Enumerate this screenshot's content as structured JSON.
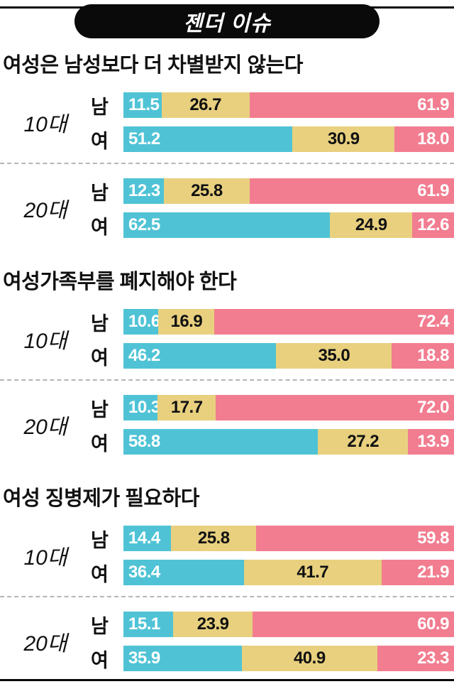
{
  "chart_data": {
    "type": "bar",
    "stacked": true,
    "orientation": "horizontal",
    "unit": "%",
    "title": "젠더 이슈",
    "segment_colors": [
      "#4fc3d5",
      "#e8d07f",
      "#f27d90"
    ],
    "axis_range": [
      0,
      100
    ],
    "grid": false,
    "legend": "none",
    "sections": [
      {
        "title": "여성은 남성보다 더 차별받지 않는다",
        "groups": [
          {
            "age": "10대",
            "rows": [
              {
                "label": "남",
                "values": [
                  11.5,
                  26.7,
                  61.9
                ]
              },
              {
                "label": "여",
                "values": [
                  51.2,
                  30.9,
                  18.0
                ]
              }
            ]
          },
          {
            "age": "20대",
            "rows": [
              {
                "label": "남",
                "values": [
                  12.3,
                  25.8,
                  61.9
                ]
              },
              {
                "label": "여",
                "values": [
                  62.5,
                  24.9,
                  12.6
                ]
              }
            ]
          }
        ]
      },
      {
        "title": "여성가족부를 폐지해야 한다",
        "groups": [
          {
            "age": "10대",
            "rows": [
              {
                "label": "남",
                "values": [
                  10.6,
                  16.9,
                  72.4
                ]
              },
              {
                "label": "여",
                "values": [
                  46.2,
                  35.0,
                  18.8
                ]
              }
            ]
          },
          {
            "age": "20대",
            "rows": [
              {
                "label": "남",
                "values": [
                  10.3,
                  17.7,
                  72.0
                ]
              },
              {
                "label": "여",
                "values": [
                  58.8,
                  27.2,
                  13.9
                ]
              }
            ]
          }
        ]
      },
      {
        "title": "여성 징병제가 필요하다",
        "groups": [
          {
            "age": "10대",
            "rows": [
              {
                "label": "남",
                "values": [
                  14.4,
                  25.8,
                  59.8
                ]
              },
              {
                "label": "여",
                "values": [
                  36.4,
                  41.7,
                  21.9
                ]
              }
            ]
          },
          {
            "age": "20대",
            "rows": [
              {
                "label": "남",
                "values": [
                  15.1,
                  23.9,
                  60.9
                ]
              },
              {
                "label": "여",
                "values": [
                  35.9,
                  40.9,
                  23.3
                ]
              }
            ]
          }
        ]
      }
    ]
  }
}
